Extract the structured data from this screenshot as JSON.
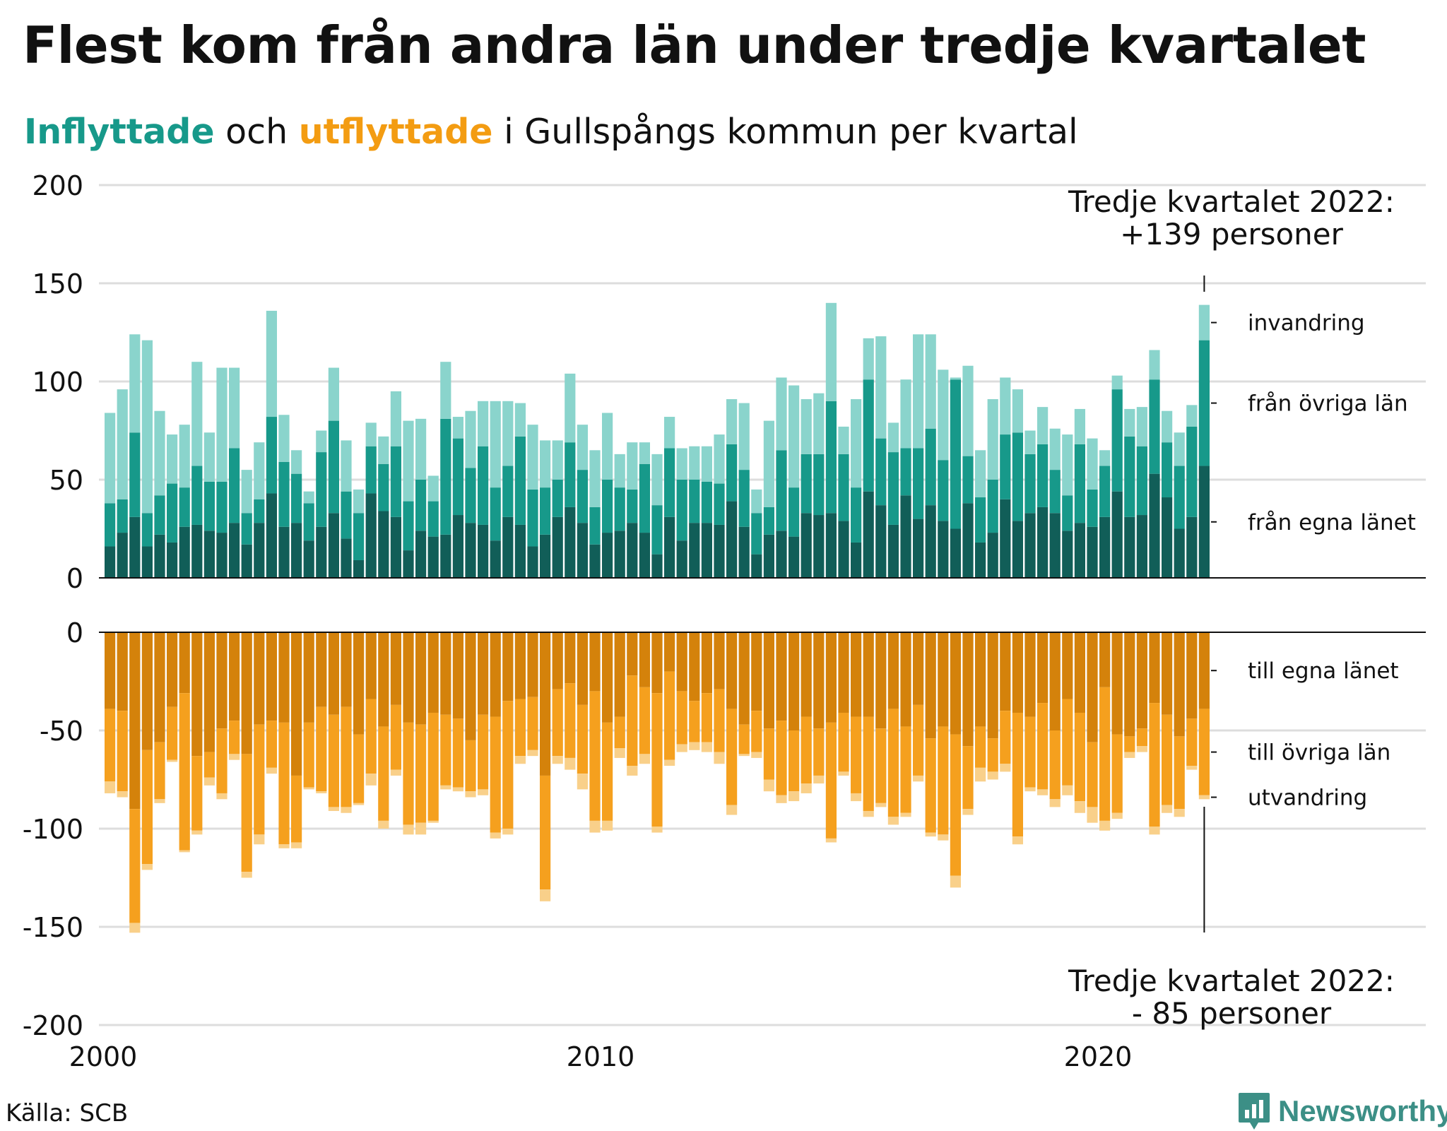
{
  "title": "Flest kom från andra län under tredje kvartalet",
  "subtitle": {
    "in_word": "Inflyttade",
    "and_word": " och ",
    "out_word": "utflyttade",
    "rest": " i Gullspångs kommun per kvartal"
  },
  "source": "Källa: SCB",
  "logo_text": "Newsworthy",
  "colors": {
    "in_own": "#115e58",
    "in_other": "#17998a",
    "in_imm": "#8ad4cc",
    "out_own": "#d4820b",
    "out_other": "#f5a01e",
    "out_emi": "#f9d08a",
    "grid": "#dddddd",
    "axis": "#111111"
  },
  "annotations": {
    "top_line1": "Tredje kvartalet 2022:",
    "top_line2": "+139 personer",
    "bottom_line1": "Tredje kvartalet 2022:",
    "bottom_line2": "- 85 personer"
  },
  "chart_data": {
    "type": "bar",
    "x_start": "2000 Q1",
    "x_end": "2022 Q3",
    "x_ticks": [
      "2000",
      "2010",
      "2020"
    ],
    "top": {
      "name": "Inflyttade",
      "y_ticks": [
        "0",
        "50",
        "100",
        "150",
        "200"
      ],
      "ylim": [
        0,
        200
      ],
      "series_labels": [
        "från egna länet",
        "från övriga län",
        "invandring"
      ],
      "series": [
        {
          "name": "från egna länet",
          "values": [
            16,
            23,
            31,
            16,
            22,
            18,
            26,
            27,
            24,
            23,
            28,
            17,
            28,
            43,
            26,
            28,
            19,
            26,
            33,
            20,
            9,
            43,
            34,
            31,
            14,
            24,
            21,
            22,
            32,
            28,
            27,
            19,
            31,
            27,
            16,
            22,
            31,
            36,
            28,
            17,
            23,
            24,
            28,
            23,
            12,
            31,
            19,
            28,
            28,
            27,
            39,
            26,
            12,
            22,
            24,
            21,
            33,
            32,
            33,
            29,
            18,
            44,
            37,
            27,
            42,
            30,
            37,
            29,
            25,
            38,
            18,
            23,
            40,
            29,
            33,
            36,
            33,
            24,
            28,
            26,
            31,
            44,
            31,
            32,
            53,
            41,
            25,
            31,
            57
          ]
        },
        {
          "name": "från övriga län",
          "values": [
            22,
            17,
            43,
            17,
            20,
            30,
            20,
            30,
            25,
            26,
            38,
            16,
            12,
            39,
            33,
            25,
            19,
            38,
            47,
            24,
            24,
            24,
            24,
            36,
            25,
            26,
            18,
            59,
            39,
            28,
            40,
            27,
            26,
            45,
            29,
            24,
            19,
            33,
            27,
            19,
            27,
            22,
            17,
            35,
            25,
            35,
            31,
            22,
            21,
            21,
            29,
            29,
            21,
            14,
            41,
            25,
            30,
            31,
            57,
            34,
            28,
            57,
            34,
            37,
            24,
            36,
            39,
            31,
            76,
            24,
            23,
            27,
            33,
            45,
            30,
            32,
            22,
            18,
            40,
            19,
            26,
            52,
            41,
            35,
            48,
            28,
            32,
            46,
            64
          ]
        },
        {
          "name": "invandring",
          "values": [
            46,
            56,
            50,
            88,
            43,
            25,
            32,
            53,
            25,
            58,
            41,
            22,
            29,
            54,
            24,
            12,
            6,
            11,
            27,
            26,
            12,
            12,
            14,
            28,
            41,
            31,
            13,
            29,
            11,
            29,
            23,
            44,
            33,
            17,
            33,
            24,
            20,
            35,
            23,
            29,
            34,
            17,
            24,
            11,
            26,
            16,
            16,
            17,
            18,
            25,
            23,
            34,
            12,
            44,
            37,
            52,
            28,
            31,
            50,
            14,
            45,
            21,
            52,
            15,
            35,
            58,
            48,
            46,
            1,
            46,
            24,
            41,
            29,
            22,
            12,
            19,
            21,
            31,
            18,
            26,
            8,
            7,
            14,
            20,
            15,
            16,
            17,
            11,
            18
          ]
        }
      ]
    },
    "bottom": {
      "name": "Utflyttade",
      "y_ticks": [
        "0",
        "-50",
        "-100",
        "-150",
        "-200"
      ],
      "ylim": [
        -200,
        0
      ],
      "series_labels": [
        "till egna länet",
        "till övriga län",
        "utvandring"
      ],
      "series": [
        {
          "name": "till egna länet",
          "values": [
            -39,
            -40,
            -90,
            -60,
            -56,
            -38,
            -31,
            -63,
            -61,
            -49,
            -45,
            -62,
            -47,
            -45,
            -46,
            -73,
            -46,
            -38,
            -42,
            -38,
            -52,
            -34,
            -48,
            -37,
            -46,
            -47,
            -41,
            -42,
            -44,
            -55,
            -42,
            -43,
            -35,
            -34,
            -33,
            -73,
            -29,
            -26,
            -37,
            -30,
            -46,
            -43,
            -22,
            -28,
            -31,
            -20,
            -30,
            -35,
            -31,
            -29,
            -39,
            -47,
            -40,
            -49,
            -45,
            -50,
            -43,
            -49,
            -46,
            -41,
            -43,
            -43,
            -49,
            -39,
            -48,
            -37,
            -54,
            -48,
            -52,
            -58,
            -48,
            -54,
            -40,
            -41,
            -43,
            -36,
            -50,
            -34,
            -41,
            -56,
            -28,
            -52,
            -53,
            -49,
            -36,
            -42,
            -53,
            -44,
            -39
          ]
        },
        {
          "name": "till övriga län",
          "values": [
            -37,
            -41,
            -58,
            -58,
            -29,
            -27,
            -80,
            -38,
            -13,
            -33,
            -17,
            -60,
            -56,
            -24,
            -62,
            -34,
            -33,
            -43,
            -47,
            -51,
            -35,
            -38,
            -48,
            -33,
            -52,
            -50,
            -55,
            -36,
            -35,
            -26,
            -38,
            -59,
            -65,
            -29,
            -27,
            -58,
            -34,
            -38,
            -35,
            -66,
            -50,
            -16,
            -46,
            -34,
            -68,
            -45,
            -27,
            -21,
            -25,
            -32,
            -49,
            -15,
            -21,
            -26,
            -38,
            -31,
            -34,
            -24,
            -59,
            -30,
            -39,
            -48,
            -38,
            -55,
            -44,
            -36,
            -48,
            -55,
            -72,
            -32,
            -21,
            -17,
            -27,
            -63,
            -36,
            -44,
            -35,
            -44,
            -45,
            -33,
            -68,
            -40,
            -8,
            -9,
            -63,
            -46,
            -37,
            -24,
            -44
          ]
        },
        {
          "name": "utvandring",
          "values": [
            -6,
            -3,
            -5,
            -3,
            -2,
            -1,
            -1,
            -2,
            -4,
            -3,
            -3,
            -3,
            -5,
            -3,
            -2,
            -3,
            -1,
            -1,
            -2,
            -3,
            -1,
            -6,
            -4,
            -3,
            -5,
            -6,
            -1,
            -2,
            -2,
            -3,
            -3,
            -3,
            -3,
            -4,
            -3,
            -6,
            -4,
            -6,
            -8,
            -6,
            -5,
            -5,
            -5,
            -5,
            -3,
            -3,
            -4,
            -4,
            -5,
            -6,
            -5,
            -1,
            -3,
            -6,
            -4,
            -5,
            -5,
            -4,
            -2,
            -2,
            -4,
            -3,
            -2,
            -4,
            -2,
            -3,
            -2,
            -3,
            -6,
            -3,
            -7,
            -4,
            -4,
            -4,
            -2,
            -3,
            -4,
            -5,
            -6,
            -8,
            -5,
            -3,
            -3,
            -3,
            -4,
            -4,
            -4,
            -2,
            -2
          ]
        }
      ]
    }
  }
}
